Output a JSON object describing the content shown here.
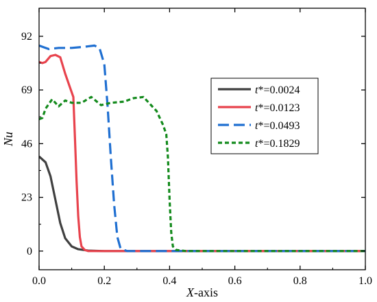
{
  "chart_data": {
    "type": "line",
    "xlabel": "X-axis",
    "ylabel": "Nu",
    "xlim": [
      0.0,
      1.0
    ],
    "ylim": [
      -8,
      104
    ],
    "xticks": [
      0.0,
      0.2,
      0.4,
      0.6,
      0.8,
      1.0
    ],
    "xtick_labels": [
      "0.0",
      "0.2",
      "0.4",
      "0.6",
      "0.8",
      "1.0"
    ],
    "yticks": [
      0,
      23,
      46,
      69,
      92
    ],
    "ytick_labels": [
      "0",
      "23",
      "46",
      "69",
      "92"
    ],
    "legend": {
      "position": "center-right"
    },
    "series": [
      {
        "name": "t*=0.0024",
        "name_italic": "t",
        "name_rest": "*=0.0024",
        "color": "#404040",
        "dash": "solid",
        "x": [
          0.0,
          0.02,
          0.035,
          0.05,
          0.065,
          0.08,
          0.1,
          0.12,
          0.15,
          0.2,
          0.3,
          1.0
        ],
        "y": [
          40.5,
          38.0,
          32.0,
          22.0,
          12.0,
          5.5,
          2.0,
          0.8,
          0.2,
          0.0,
          0.0,
          0.0
        ]
      },
      {
        "name": "t*=0.0123",
        "name_italic": "t",
        "name_rest": "*=0.0123",
        "color": "#e8434d",
        "dash": "solid",
        "x": [
          0.0,
          0.01,
          0.02,
          0.035,
          0.05,
          0.065,
          0.08,
          0.095,
          0.105,
          0.11,
          0.115,
          0.12,
          0.125,
          0.13,
          0.14,
          0.15,
          0.2,
          1.0
        ],
        "y": [
          81.0,
          80.5,
          81.0,
          83.5,
          84.0,
          83.0,
          76.0,
          70.0,
          66.0,
          48.0,
          30.0,
          15.0,
          6.0,
          2.0,
          0.5,
          0.0,
          0.0,
          0.0
        ],
        "mark_at": "last-x"
      },
      {
        "name": "t*=0.0493",
        "name_italic": "t",
        "name_rest": "*=0.0493",
        "color": "#1f6fd1",
        "dash": "long-dash",
        "x": [
          0.0,
          0.01,
          0.03,
          0.06,
          0.1,
          0.14,
          0.17,
          0.185,
          0.2,
          0.21,
          0.22,
          0.23,
          0.24,
          0.25,
          0.27,
          0.3,
          1.0
        ],
        "y": [
          88.0,
          87.5,
          86.5,
          87.0,
          87.0,
          87.5,
          88.0,
          87.0,
          80.0,
          62.0,
          40.0,
          20.0,
          6.0,
          1.0,
          0.0,
          0.0,
          0.0
        ]
      },
      {
        "name": "t*=0.1829",
        "name_italic": "t",
        "name_rest": "*=0.1829",
        "color": "#138a1c",
        "dash": "short-dash",
        "x": [
          0.0,
          0.01,
          0.02,
          0.04,
          0.06,
          0.08,
          0.1,
          0.13,
          0.16,
          0.19,
          0.22,
          0.26,
          0.29,
          0.32,
          0.34,
          0.36,
          0.38,
          0.39,
          0.395,
          0.4,
          0.405,
          0.41,
          0.42,
          0.45,
          1.0
        ],
        "y": [
          56.5,
          57.0,
          61.0,
          65.0,
          62.0,
          64.5,
          63.5,
          63.5,
          66.0,
          62.5,
          63.5,
          64.0,
          65.5,
          66.0,
          63.0,
          60.0,
          54.0,
          50.0,
          40.0,
          22.0,
          8.0,
          2.0,
          0.5,
          0.0,
          0.0
        ]
      }
    ]
  }
}
